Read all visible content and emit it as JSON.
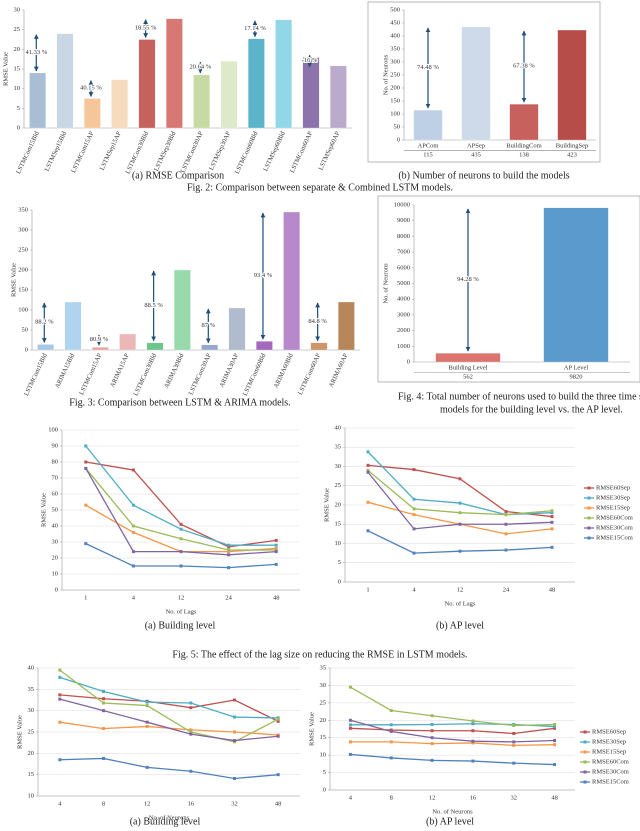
{
  "chart_data": [
    {
      "type": "bar",
      "caption": "(a)    RMSE Comparison",
      "ylabel": "RMSE Value",
      "categories": [
        "LSTMCom15Bld",
        "LSTMSep15Bld",
        "LSTMCom15AP",
        "LSTMSep15AP",
        "LSTMCom30Bld",
        "LSTMSep30Bld",
        "LSTMCom30AP",
        "LSTMSep30AP",
        "LSTMCom60Bld",
        "LSTMSep60Bld",
        "LSTMCom60AP",
        "LSTMSep60AP"
      ],
      "values": [
        14,
        24,
        7.5,
        12.3,
        22.5,
        27.8,
        13.5,
        17,
        22.7,
        27.5,
        18,
        15.8
      ],
      "colors": [
        "#9fb8d0",
        "#c4d3e3",
        "#f4c08e",
        "#f6d8b8",
        "#c0504d",
        "#d46a66",
        "#c3d69b",
        "#dbe7c4",
        "#4bacc6",
        "#86d3e6",
        "#8064a2",
        "#b3a2c7"
      ],
      "annotations": [
        "41.33 %",
        "40.15 %",
        "18.55 %",
        "20.64 %",
        "17.14 %",
        "-16 %"
      ],
      "ylim": [
        0,
        30
      ],
      "yticks": [
        0,
        5,
        10,
        15,
        20,
        25,
        30
      ],
      "grid": false
    },
    {
      "type": "bar",
      "caption": "(b) Number of neurons to build the models",
      "ylabel": "No. of Neurons",
      "categories": [
        "APCom",
        "APSep",
        "BuildingCom",
        "BuildingSep"
      ],
      "values": [
        115,
        435,
        138,
        423
      ],
      "colors": [
        "#b8cce4",
        "#c9d7e8",
        "#c0504d",
        "#b03a36"
      ],
      "annotations": [
        "74.48 %",
        "67.38 %"
      ],
      "ylim": [
        0,
        500
      ],
      "yticks": [
        0,
        50,
        100,
        150,
        200,
        250,
        300,
        350,
        400,
        450,
        500
      ],
      "grid": false
    },
    {
      "type": "bar",
      "ylabel": "RMSE Value",
      "categories": [
        "LSTMCom15Bld",
        "ARIMA15Bld",
        "LSTMCom15AP",
        "ARIMA15AP",
        "LSTMCom30Bld",
        "ARIMA30Bld",
        "LSTMCom30AP",
        "ARIMA30AP",
        "LSTMCom60Bld",
        "ARIMA60Bld",
        "LSTMCom60AP",
        "ARIMA60AP"
      ],
      "values": [
        14,
        120,
        7,
        40,
        18,
        200,
        13,
        105,
        22,
        345,
        18,
        120
      ],
      "colors": [
        "#9fc4e0",
        "#a8d0ee",
        "#e89a9a",
        "#eab0b0",
        "#5fbf7f",
        "#8ed6a5",
        "#8aa0c8",
        "#a8b4c8",
        "#9b59b6",
        "#b07cc6",
        "#c98a5a",
        "#b07a4a"
      ],
      "annotations": [
        "88.2 %",
        "80.9 %",
        "88.5 %",
        "87 %",
        "93.4 %",
        "84.8 %"
      ],
      "ylim": [
        0,
        350
      ],
      "yticks": [
        0,
        50,
        100,
        150,
        200,
        250,
        300,
        350
      ],
      "grid": false
    },
    {
      "type": "bar",
      "ylabel": "No. of Neurons",
      "categories": [
        "Building Level",
        "AP Level"
      ],
      "values": [
        562,
        9820
      ],
      "colors": [
        "#d9655f",
        "#4a90c8"
      ],
      "annotations": [
        "94.28 %"
      ],
      "ylim": [
        0,
        10000
      ],
      "yticks": [
        0,
        1000,
        2000,
        3000,
        4000,
        5000,
        6000,
        7000,
        8000,
        9000,
        10000
      ],
      "grid": false
    },
    {
      "type": "line",
      "caption": "(a) Building level",
      "xlabel": "No. of Lags",
      "ylabel": "RMSE Value",
      "categories": [
        "1",
        "4",
        "12",
        "24",
        "48"
      ],
      "legend": false,
      "grid": true,
      "ylim": [
        0,
        100
      ],
      "yticks": [
        0,
        10,
        20,
        30,
        40,
        50,
        60,
        70,
        80,
        90,
        100
      ],
      "series": [
        {
          "name": "RMSE60Sep",
          "color": "#c0504d",
          "values": [
            80,
            75,
            41,
            27,
            31
          ]
        },
        {
          "name": "RMSE30Sep",
          "color": "#4bacc6",
          "values": [
            90,
            53,
            38,
            28,
            28
          ]
        },
        {
          "name": "RMSE15Sep",
          "color": "#f79646",
          "values": [
            53,
            36,
            24,
            24,
            26
          ]
        },
        {
          "name": "RMSE60Com",
          "color": "#9bbb59",
          "values": [
            76,
            40,
            32,
            25,
            25
          ]
        },
        {
          "name": "RMSE30Com",
          "color": "#8064a2",
          "values": [
            76,
            24,
            24,
            22,
            24
          ]
        },
        {
          "name": "RMSE15Com",
          "color": "#4f81bd",
          "values": [
            29,
            15,
            15,
            14,
            16
          ]
        }
      ]
    },
    {
      "type": "line",
      "caption": "(b) AP level",
      "xlabel": "No. of Lags",
      "ylabel": "RMSE Value",
      "categories": [
        "1",
        "4",
        "12",
        "24",
        "48"
      ],
      "legend": true,
      "grid": true,
      "ylim": [
        0,
        40
      ],
      "yticks": [
        0,
        5,
        10,
        15,
        20,
        25,
        30,
        35,
        40
      ],
      "series": [
        {
          "name": "RMSE60Sep",
          "color": "#c0504d",
          "values": [
            30.3,
            29.2,
            26.8,
            18.3,
            17
          ]
        },
        {
          "name": "RMSE30Sep",
          "color": "#4bacc6",
          "values": [
            33.8,
            21.5,
            20.5,
            17.5,
            18
          ]
        },
        {
          "name": "RMSE15Sep",
          "color": "#f79646",
          "values": [
            20.7,
            17.5,
            15,
            12.5,
            13.8
          ]
        },
        {
          "name": "RMSE60Com",
          "color": "#9bbb59",
          "values": [
            29,
            19,
            18,
            17.5,
            18.5
          ]
        },
        {
          "name": "RMSE30Com",
          "color": "#8064a2",
          "values": [
            28.5,
            13.8,
            15,
            15,
            15.5
          ]
        },
        {
          "name": "RMSE15Com",
          "color": "#4f81bd",
          "values": [
            13.3,
            7.5,
            8,
            8.3,
            9
          ]
        }
      ]
    },
    {
      "type": "line",
      "caption": "(a) Building level",
      "xlabel": "No. of Neurons",
      "ylabel": "RMSE Value",
      "categories": [
        "4",
        "8",
        "12",
        "16",
        "32",
        "48"
      ],
      "legend": false,
      "grid": true,
      "ylim": [
        10,
        40
      ],
      "yticks": [
        10,
        15,
        20,
        25,
        30,
        35,
        40
      ],
      "series": [
        {
          "name": "RMSE60Sep",
          "color": "#c0504d",
          "values": [
            33.7,
            32.8,
            32.2,
            30.7,
            32.5,
            27.5
          ]
        },
        {
          "name": "RMSE30Sep",
          "color": "#4bacc6",
          "values": [
            37.8,
            34.5,
            32,
            31.8,
            28.5,
            28.3
          ]
        },
        {
          "name": "RMSE15Sep",
          "color": "#f79646",
          "values": [
            27.3,
            25.8,
            26.3,
            25.5,
            25,
            24.3
          ]
        },
        {
          "name": "RMSE60Com",
          "color": "#9bbb59",
          "values": [
            39.5,
            31.8,
            31.2,
            25,
            22.7,
            28
          ]
        },
        {
          "name": "RMSE30Com",
          "color": "#8064a2",
          "values": [
            32.7,
            30,
            27.3,
            24.5,
            23,
            24
          ]
        },
        {
          "name": "RMSE15Com",
          "color": "#4f81bd",
          "values": [
            18.5,
            18.8,
            16.7,
            15.8,
            14.1,
            15
          ]
        }
      ]
    },
    {
      "type": "line",
      "caption": "(b) AP level",
      "xlabel": "No. of Neurons",
      "ylabel": "RMSE Value",
      "categories": [
        "4",
        "8",
        "12",
        "16",
        "32",
        "48"
      ],
      "legend": true,
      "grid": true,
      "ylim": [
        0,
        35
      ],
      "yticks": [
        0,
        5,
        10,
        15,
        20,
        25,
        30,
        35
      ],
      "series": [
        {
          "name": "RMSE60Sep",
          "color": "#c0504d",
          "values": [
            17.7,
            17.2,
            17,
            17,
            16.2,
            17.7
          ]
        },
        {
          "name": "RMSE30Sep",
          "color": "#4bacc6",
          "values": [
            18.7,
            18.7,
            18.8,
            19,
            18.8,
            18.2
          ]
        },
        {
          "name": "RMSE15Sep",
          "color": "#f79646",
          "values": [
            13.8,
            13.8,
            13.3,
            13.5,
            12.8,
            13
          ]
        },
        {
          "name": "RMSE60Com",
          "color": "#9bbb59",
          "values": [
            29.5,
            22.8,
            21.3,
            19.8,
            18.5,
            18.8
          ]
        },
        {
          "name": "RMSE30Com",
          "color": "#8064a2",
          "values": [
            20,
            16.8,
            15,
            14,
            13.8,
            14.2
          ]
        },
        {
          "name": "RMSE15Com",
          "color": "#4f81bd",
          "values": [
            10.2,
            9.2,
            8.5,
            8.3,
            7.7,
            7.3
          ]
        }
      ]
    }
  ],
  "figure_captions": [
    "Fig. 2: Comparison between separate & Combined LSTM models.",
    "Fig. 3: Comparison between LSTM & ARIMA models.",
    "Fig. 4: Total number of neurons used to build the three time s",
    "models for the building level vs. the AP level.",
    "Fig. 5: The effect of the lag size on reducing the RMSE in LSTM models."
  ]
}
